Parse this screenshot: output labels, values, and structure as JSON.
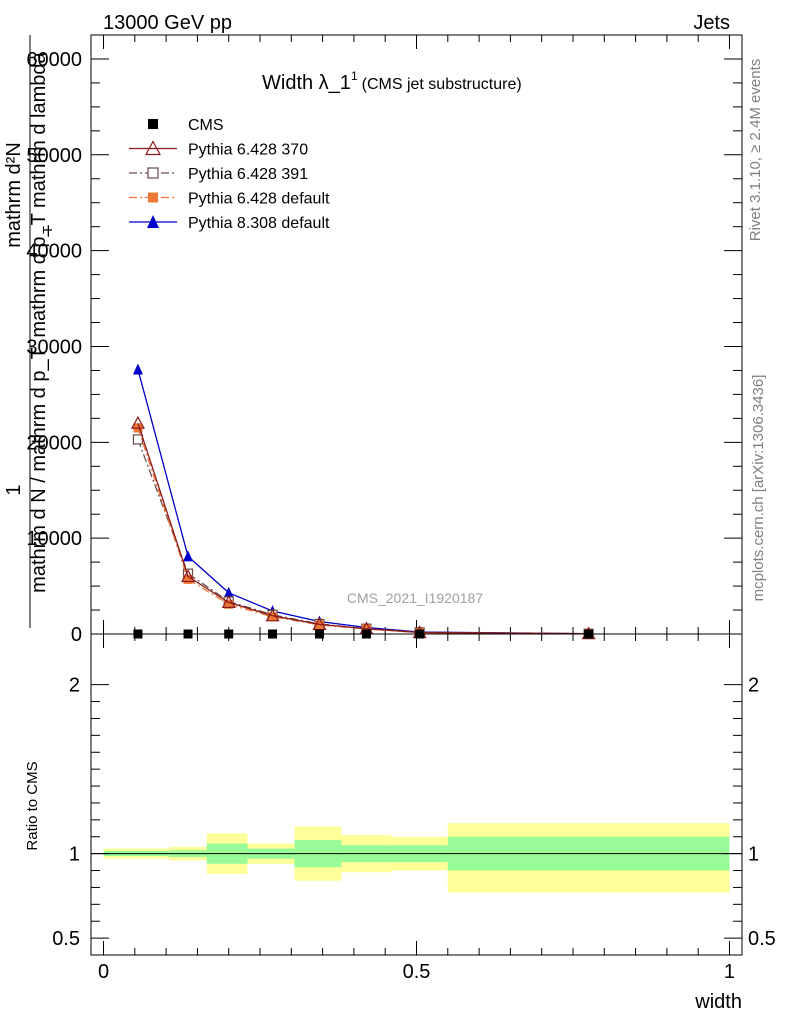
{
  "header": {
    "left": "13000 GeV pp",
    "right": "Jets"
  },
  "side": {
    "rivet": "Rivet 3.1.10, ≥ 2.4M events",
    "mcplots": "mcplots.cern.ch [arXiv:1306.3436]"
  },
  "watermark": "CMS_2021_I1920187",
  "chart_data": [
    {
      "type": "line",
      "title_main": "Width λ_1",
      "title_sup": "1",
      "title_note": "(CMS jet substructure)",
      "ylabel_top_num": "mathrm d²N",
      "ylabel_top_den": "mathrm d p_T mathrm d lambda",
      "ylabel_bottom_num": "1",
      "ylabel_bottom_den": "mathrm d N / mathrm d p_T",
      "ylabel_sub": "T",
      "ylim": [
        0,
        62500
      ],
      "yticks": [
        {
          "v": 0,
          "label": "0"
        },
        {
          "v": 10000,
          "label": "10000"
        },
        {
          "v": 20000,
          "label": "20000"
        },
        {
          "v": 30000,
          "label": "30000"
        },
        {
          "v": 40000,
          "label": "40000"
        },
        {
          "v": 50000,
          "label": "50000"
        },
        {
          "v": 60000,
          "label": "60000"
        }
      ],
      "xlim": [
        -0.02,
        1.02
      ],
      "x": [
        0.055,
        0.135,
        0.2,
        0.27,
        0.345,
        0.42,
        0.505,
        0.775
      ],
      "series": [
        {
          "name": "CMS",
          "color": "#000000",
          "marker": "square-filled",
          "dash": "none",
          "values": [
            0,
            0,
            0,
            0,
            0,
            0,
            0,
            0
          ]
        },
        {
          "name": "Pythia 6.428 370",
          "color": "#8b1a1a",
          "marker": "triangle-open",
          "dash": "solid",
          "values": [
            22000,
            6000,
            3300,
            1900,
            1000,
            550,
            160,
            30
          ]
        },
        {
          "name": "Pythia 6.428 391",
          "color": "#6b4a4a",
          "marker": "square-open",
          "dash": "dashdot",
          "values": [
            20300,
            6300,
            3400,
            2000,
            1050,
            560,
            170,
            30
          ]
        },
        {
          "name": "Pythia 6.428 default",
          "color": "#ee7733",
          "marker": "square-filled",
          "dash": "dashdot",
          "values": [
            21500,
            5700,
            3100,
            1800,
            950,
            520,
            150,
            30
          ]
        },
        {
          "name": "Pythia 8.308 default",
          "color": "#0000cc",
          "marker": "triangle-filled",
          "dash": "solid",
          "values": [
            27600,
            8100,
            4300,
            2400,
            1300,
            680,
            200,
            40
          ]
        }
      ]
    },
    {
      "type": "area",
      "ylabel": "Ratio to CMS",
      "xlabel": "width",
      "ylim": [
        0.4,
        2.3
      ],
      "yticks": [
        {
          "v": 0.5,
          "label": "0.5"
        },
        {
          "v": 1,
          "label": "1"
        },
        {
          "v": 2,
          "label": "2"
        }
      ],
      "xticks": [
        {
          "v": 0,
          "label": "0"
        },
        {
          "v": 0.5,
          "label": "0.5"
        },
        {
          "v": 1,
          "label": "1"
        }
      ],
      "bands_inner_color": "#98fb98",
      "bands_outer_color": "#ffff99",
      "bins": [
        {
          "x0": 0.0,
          "x1": 0.105,
          "inner": [
            0.985,
            1.015
          ],
          "outer": [
            0.97,
            1.03
          ]
        },
        {
          "x0": 0.105,
          "x1": 0.165,
          "inner": [
            0.98,
            1.02
          ],
          "outer": [
            0.96,
            1.04
          ]
        },
        {
          "x0": 0.165,
          "x1": 0.23,
          "inner": [
            0.94,
            1.06
          ],
          "outer": [
            0.88,
            1.12
          ]
        },
        {
          "x0": 0.23,
          "x1": 0.305,
          "inner": [
            0.97,
            1.03
          ],
          "outer": [
            0.94,
            1.06
          ]
        },
        {
          "x0": 0.305,
          "x1": 0.38,
          "inner": [
            0.92,
            1.08
          ],
          "outer": [
            0.84,
            1.16
          ]
        },
        {
          "x0": 0.38,
          "x1": 0.46,
          "inner": [
            0.95,
            1.05
          ],
          "outer": [
            0.89,
            1.11
          ]
        },
        {
          "x0": 0.46,
          "x1": 0.55,
          "inner": [
            0.95,
            1.05
          ],
          "outer": [
            0.9,
            1.1
          ]
        },
        {
          "x0": 0.55,
          "x1": 1.0,
          "inner": [
            0.9,
            1.1
          ],
          "outer": [
            0.77,
            1.18
          ]
        }
      ]
    }
  ]
}
